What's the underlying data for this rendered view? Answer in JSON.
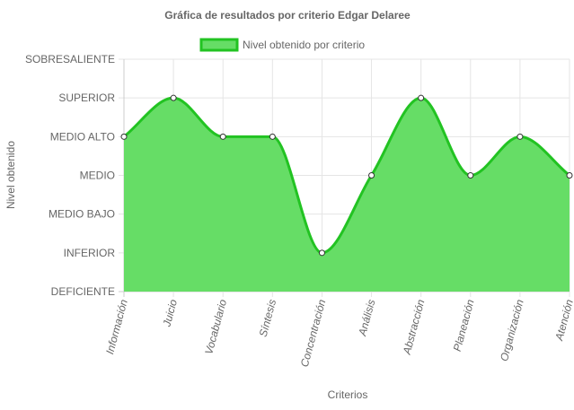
{
  "chart_data": {
    "type": "area",
    "title": "Gráfica de resultados por criterio Edgar Delaree",
    "xlabel": "Criterios",
    "ylabel": "Nivel obtenido",
    "categories": [
      "Información",
      "Juicio",
      "Vocabulario",
      "Síntesis",
      "Concentración",
      "Análisis",
      "Abstracción",
      "Planeación",
      "Organización",
      "Atención"
    ],
    "y_levels": [
      "DEFICIENTE",
      "INFERIOR",
      "MEDIO BAJO",
      "MEDIO",
      "MEDIO ALTO",
      "SUPERIOR",
      "SOBRESALIENTE"
    ],
    "ylim": [
      0,
      6
    ],
    "series": [
      {
        "name": "Nivel obtenido por criterio",
        "values": [
          4,
          5,
          4,
          4,
          1,
          3,
          5,
          3,
          4,
          3
        ],
        "value_labels": [
          "MEDIO ALTO",
          "SUPERIOR",
          "MEDIO ALTO",
          "MEDIO ALTO",
          "INFERIOR",
          "MEDIO",
          "SUPERIOR",
          "MEDIO",
          "MEDIO ALTO",
          "MEDIO"
        ]
      }
    ],
    "grid": true,
    "legend_position": "top",
    "colors": {
      "fill": "#66dd66",
      "line": "#22c322",
      "grid": "#e5e5e5",
      "axis": "#cccccc",
      "text": "#666666"
    }
  }
}
